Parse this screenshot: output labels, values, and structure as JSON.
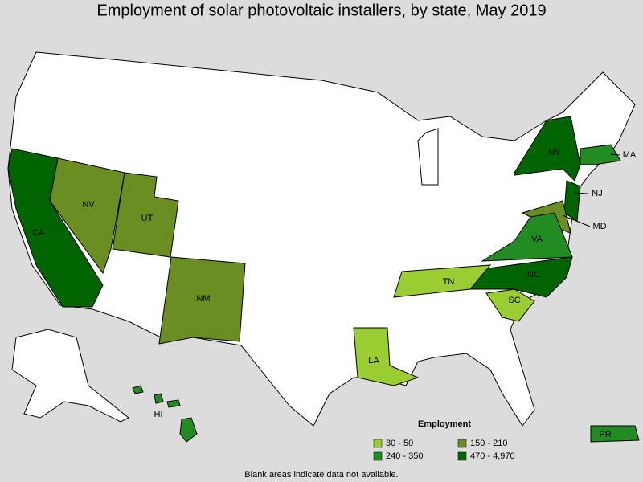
{
  "title": "Employment of solar photovoltaic installers, by state, May 2019",
  "states": [
    {
      "label": "CA",
      "color": "#006400"
    },
    {
      "label": "NV",
      "color": "#6b8e23"
    },
    {
      "label": "UT",
      "color": "#6b8e23"
    },
    {
      "label": "NM",
      "color": "#6b8e23"
    },
    {
      "label": "NY",
      "color": "#006400"
    },
    {
      "label": "MA",
      "color": "#228b22"
    },
    {
      "label": "NJ",
      "color": "#006400"
    },
    {
      "label": "MD",
      "color": "#6b8e23"
    },
    {
      "label": "VA",
      "color": "#228b22"
    },
    {
      "label": "NC",
      "color": "#006400"
    },
    {
      "label": "TN",
      "color": "#9acd32"
    },
    {
      "label": "SC",
      "color": "#9acd32"
    },
    {
      "label": "LA",
      "color": "#9acd32"
    },
    {
      "label": "HI",
      "color": "#228b22"
    },
    {
      "label": "PR",
      "color": "#228b22"
    }
  ],
  "legend": {
    "title": "Employment",
    "items": [
      {
        "label": "30 - 50",
        "color": "#9acd32"
      },
      {
        "label": "150 - 210",
        "color": "#6b8e23"
      },
      {
        "label": "240 - 350",
        "color": "#228b22"
      },
      {
        "label": "470 - 4,970",
        "color": "#006400"
      }
    ]
  },
  "note": "Blank areas indicate data not available."
}
